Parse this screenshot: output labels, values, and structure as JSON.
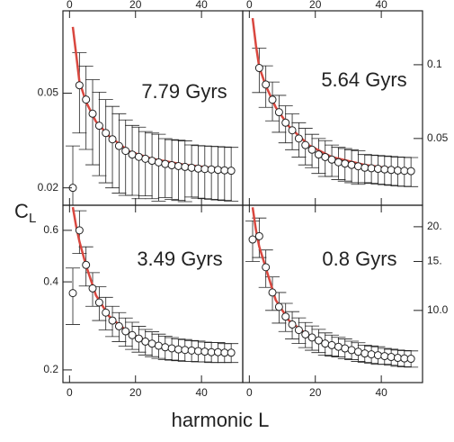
{
  "xlabel": "harmonic L",
  "ylabel_main": "C",
  "ylabel_subscript": "L",
  "chart_data": [
    {
      "type": "scatter",
      "annotation": "7.79 Gyrs",
      "xaxis_side": "top",
      "yaxis_side": "left",
      "log_y": true,
      "xlim": [
        -2,
        52.5
      ],
      "xticks": [
        0,
        20,
        40
      ],
      "ylim": [
        0.0169,
        0.111
      ],
      "yticks": [
        0.02,
        0.05
      ],
      "x": [
        1,
        3,
        5,
        7,
        9,
        11,
        13,
        15,
        17,
        19,
        21,
        23,
        25,
        27,
        29,
        31,
        33,
        35,
        37,
        39,
        41,
        43,
        45,
        47,
        49
      ],
      "values": [
        0.02,
        0.054,
        0.047,
        0.041,
        0.0365,
        0.034,
        0.032,
        0.03,
        0.0286,
        0.0276,
        0.027,
        0.0265,
        0.026,
        0.0256,
        0.0252,
        0.0249,
        0.0247,
        0.0245,
        0.0243,
        0.0241,
        0.024,
        0.0239,
        0.0238,
        0.0237,
        0.0236
      ],
      "errors": [
        0.01,
        0.02,
        0.018,
        0.016,
        0.014,
        0.013,
        0.012,
        0.011,
        0.01,
        0.009,
        0.009,
        0.008,
        0.008,
        0.008,
        0.007,
        0.007,
        0.007,
        0.007,
        0.006,
        0.006,
        0.006,
        0.006,
        0.006,
        0.006,
        0.006
      ],
      "fit": {
        "color": "#d9473f",
        "x": [
          1,
          2,
          3,
          5,
          8,
          12,
          18,
          25,
          35,
          49
        ],
        "values": [
          0.095,
          0.073,
          0.056,
          0.046,
          0.038,
          0.033,
          0.0285,
          0.0265,
          0.025,
          0.0238
        ]
      }
    },
    {
      "type": "scatter",
      "annotation": "5.64 Gyrs",
      "xaxis_side": "top",
      "yaxis_side": "right",
      "log_y": true,
      "xlim": [
        -2,
        52.5
      ],
      "xticks": [
        0,
        20,
        40
      ],
      "ylim": [
        0.0267,
        0.166
      ],
      "yticks": [
        0.1,
        0.05
      ],
      "x": [
        1,
        3,
        5,
        7,
        9,
        11,
        13,
        15,
        17,
        19,
        21,
        23,
        25,
        27,
        29,
        31,
        33,
        35,
        37,
        39,
        41,
        43,
        45,
        47,
        49
      ],
      "values": [
        null,
        0.097,
        0.083,
        0.072,
        0.064,
        0.058,
        0.054,
        0.05,
        0.047,
        0.045,
        0.043,
        0.042,
        0.041,
        0.04,
        0.0395,
        0.039,
        0.0385,
        0.038,
        0.0378,
        0.0376,
        0.0374,
        0.0372,
        0.037,
        0.0369,
        0.0368
      ],
      "errors": [
        null,
        0.02,
        0.016,
        0.013,
        0.011,
        0.01,
        0.009,
        0.008,
        0.008,
        0.007,
        0.007,
        0.007,
        0.006,
        0.006,
        0.006,
        0.006,
        0.006,
        0.005,
        0.005,
        0.005,
        0.005,
        0.005,
        0.005,
        0.005,
        0.005
      ],
      "fit": {
        "color": "#d9473f",
        "x": [
          1,
          2,
          3,
          5,
          8,
          12,
          18,
          25,
          35,
          49
        ],
        "values": [
          0.155,
          0.12,
          0.098,
          0.082,
          0.067,
          0.056,
          0.047,
          0.042,
          0.039,
          0.0368
        ]
      }
    },
    {
      "type": "scatter",
      "annotation": "3.49 Gyrs",
      "xaxis_side": "bottom",
      "yaxis_side": "left",
      "log_y": true,
      "xlim": [
        -2,
        52.5
      ],
      "xticks": [
        0,
        20,
        40
      ],
      "ylim": [
        0.181,
        0.731
      ],
      "yticks": [
        0.2,
        0.4,
        0.6
      ],
      "x": [
        1,
        3,
        5,
        7,
        9,
        11,
        13,
        15,
        17,
        19,
        21,
        23,
        25,
        27,
        29,
        31,
        33,
        35,
        37,
        39,
        41,
        43,
        45,
        47,
        49
      ],
      "values": [
        0.366,
        0.6,
        0.457,
        0.38,
        0.34,
        0.314,
        0.295,
        0.282,
        0.271,
        0.263,
        0.256,
        0.25,
        0.246,
        0.242,
        0.239,
        0.237,
        0.235,
        0.234,
        0.233,
        0.232,
        0.231,
        0.23,
        0.23,
        0.229,
        0.229
      ],
      "errors": [
        0.08,
        0.1,
        0.07,
        0.05,
        0.045,
        0.04,
        0.035,
        0.032,
        0.03,
        0.028,
        0.026,
        0.025,
        0.024,
        0.023,
        0.022,
        0.021,
        0.02,
        0.02,
        0.019,
        0.019,
        0.018,
        0.018,
        0.018,
        0.017,
        0.017
      ],
      "fit": {
        "color": "#d9473f",
        "x": [
          1,
          2,
          3,
          5,
          8,
          12,
          18,
          25,
          35,
          49
        ],
        "values": [
          0.72,
          0.62,
          0.55,
          0.455,
          0.36,
          0.305,
          0.268,
          0.246,
          0.234,
          0.229
        ]
      }
    },
    {
      "type": "scatter",
      "annotation": "0.8 Gyrs",
      "xaxis_side": "bottom",
      "yaxis_side": "right",
      "log_y": true,
      "xlim": [
        -2,
        52.5
      ],
      "xticks": [
        0,
        20,
        40
      ],
      "ylim": [
        5.5,
        23.9
      ],
      "yticks": [
        {
          "value": 20,
          "label": "20."
        },
        {
          "value": 15,
          "label": "15."
        },
        {
          "value": 10,
          "label": "10.0"
        }
      ],
      "x": [
        1,
        3,
        5,
        7,
        9,
        11,
        13,
        15,
        17,
        19,
        21,
        23,
        25,
        27,
        29,
        31,
        33,
        35,
        37,
        39,
        41,
        43,
        45,
        47,
        49
      ],
      "values": [
        18.0,
        18.5,
        14.3,
        11.6,
        10.3,
        9.5,
        8.9,
        8.5,
        8.2,
        7.99,
        7.8,
        7.6,
        7.5,
        7.4,
        7.3,
        7.2,
        7.1,
        7.0,
        6.95,
        6.9,
        6.85,
        6.8,
        6.75,
        6.72,
        6.7
      ],
      "errors": [
        3,
        3,
        2.2,
        1.6,
        1.3,
        1.1,
        1.0,
        0.9,
        0.85,
        0.8,
        0.75,
        0.7,
        0.65,
        0.6,
        0.6,
        0.55,
        0.55,
        0.5,
        0.5,
        0.5,
        0.45,
        0.45,
        0.45,
        0.45,
        0.45
      ],
      "fit": {
        "color": "#d9473f",
        "x": [
          1,
          2,
          3,
          5,
          8,
          12,
          18,
          25,
          35,
          49
        ],
        "values": [
          23.5,
          19.5,
          17,
          14.2,
          10.9,
          9.2,
          8.1,
          7.5,
          7.0,
          6.7
        ]
      }
    }
  ]
}
